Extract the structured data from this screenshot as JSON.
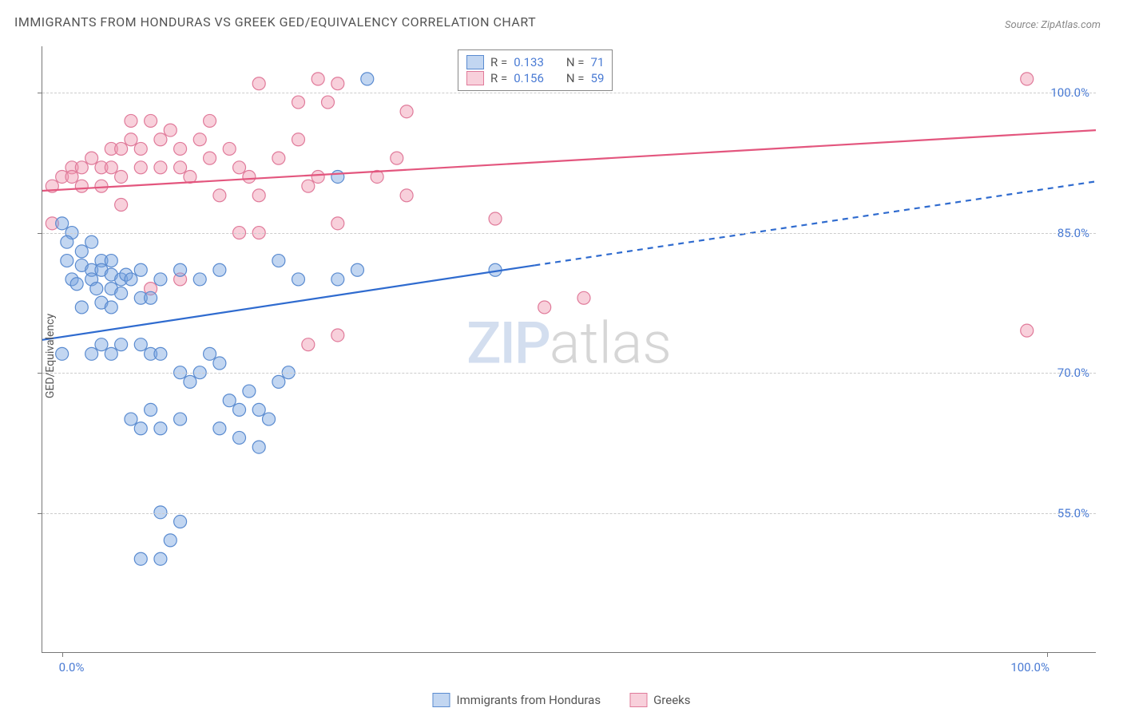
{
  "title": "IMMIGRANTS FROM HONDURAS VS GREEK GED/EQUIVALENCY CORRELATION CHART",
  "source_label": "Source: ZipAtlas.com",
  "y_axis_title": "GED/Equivalency",
  "watermark": {
    "part1": "ZIP",
    "part2": "atlas"
  },
  "chart": {
    "type": "scatter-with-regression",
    "plot_bg": "#ffffff",
    "grid_color": "#cccccc",
    "grid_dash": "4,4",
    "axis_color": "#777777",
    "tick_label_color": "#4a7bd4",
    "tick_label_fontsize": 15,
    "x_range": [
      -2,
      105
    ],
    "y_range": [
      40,
      105
    ],
    "y_ticks": [
      55.0,
      70.0,
      85.0,
      100.0
    ],
    "y_tick_labels": [
      "55.0%",
      "70.0%",
      "85.0%",
      "100.0%"
    ],
    "x_ticks": [
      0.0,
      100.0
    ],
    "x_tick_labels": [
      "0.0%",
      "100.0%"
    ],
    "point_radius": 8,
    "point_stroke_width": 1.2,
    "series": [
      {
        "id": "honduras",
        "label": "Immigrants from Honduras",
        "fill": "rgba(120,165,225,0.45)",
        "stroke": "#5a8bd0",
        "line_color": "#2f6bcf",
        "line_width": 2.2,
        "r_value": "0.133",
        "n_value": "71",
        "reg_line": {
          "x1": -2,
          "y1": 73.5,
          "x2": 48,
          "y2": 81.5,
          "x2_ext": 105,
          "y2_ext": 90.5
        },
        "points": [
          [
            0,
            86
          ],
          [
            1,
            85
          ],
          [
            0.5,
            84
          ],
          [
            0.5,
            82
          ],
          [
            2,
            83
          ],
          [
            3,
            84
          ],
          [
            2,
            81.5
          ],
          [
            3,
            81
          ],
          [
            1,
            80
          ],
          [
            1.5,
            79.5
          ],
          [
            4,
            82
          ],
          [
            4,
            81
          ],
          [
            5,
            82
          ],
          [
            5,
            80.5
          ],
          [
            3,
            80
          ],
          [
            3.5,
            79
          ],
          [
            5,
            79
          ],
          [
            6,
            80
          ],
          [
            6.5,
            80.5
          ],
          [
            7,
            80
          ],
          [
            8,
            81
          ],
          [
            4,
            77.5
          ],
          [
            2,
            77
          ],
          [
            5,
            77
          ],
          [
            6,
            78.5
          ],
          [
            8,
            78
          ],
          [
            9,
            78
          ],
          [
            10,
            80
          ],
          [
            12,
            81
          ],
          [
            14,
            80
          ],
          [
            16,
            81
          ],
          [
            22,
            82
          ],
          [
            24,
            80
          ],
          [
            28,
            80
          ],
          [
            30,
            81
          ],
          [
            0,
            72
          ],
          [
            3,
            72
          ],
          [
            4,
            73
          ],
          [
            5,
            72
          ],
          [
            6,
            73
          ],
          [
            8,
            73
          ],
          [
            9,
            72
          ],
          [
            10,
            72
          ],
          [
            12,
            70
          ],
          [
            13,
            69
          ],
          [
            14,
            70
          ],
          [
            15,
            72
          ],
          [
            16,
            71
          ],
          [
            17,
            67
          ],
          [
            18,
            66
          ],
          [
            19,
            68
          ],
          [
            20,
            66
          ],
          [
            21,
            65
          ],
          [
            22,
            69
          ],
          [
            23,
            70
          ],
          [
            16,
            64
          ],
          [
            18,
            63
          ],
          [
            20,
            62
          ],
          [
            7,
            65
          ],
          [
            8,
            64
          ],
          [
            9,
            66
          ],
          [
            10,
            64
          ],
          [
            12,
            65
          ],
          [
            10,
            55
          ],
          [
            11,
            52
          ],
          [
            12,
            54
          ],
          [
            8,
            50
          ],
          [
            10,
            50
          ],
          [
            28,
            91
          ],
          [
            31,
            101.5
          ],
          [
            44,
            81
          ]
        ]
      },
      {
        "id": "greeks",
        "label": "Greeks",
        "fill": "rgba(240,150,175,0.45)",
        "stroke": "#e07a9a",
        "line_color": "#e3567e",
        "line_width": 2.2,
        "r_value": "0.156",
        "n_value": "59",
        "reg_line": {
          "x1": -2,
          "y1": 89.5,
          "x2": 105,
          "y2": 96.0
        },
        "points": [
          [
            -1,
            90
          ],
          [
            -1,
            86
          ],
          [
            0,
            91
          ],
          [
            1,
            92
          ],
          [
            1,
            91
          ],
          [
            2,
            92
          ],
          [
            2,
            90
          ],
          [
            3,
            93
          ],
          [
            4,
            92
          ],
          [
            4,
            90
          ],
          [
            5,
            94
          ],
          [
            5,
            92
          ],
          [
            6,
            91
          ],
          [
            6,
            94
          ],
          [
            7,
            95
          ],
          [
            7,
            97
          ],
          [
            8,
            94
          ],
          [
            8,
            92
          ],
          [
            9,
            97
          ],
          [
            10,
            95
          ],
          [
            10,
            92
          ],
          [
            11,
            96
          ],
          [
            12,
            92
          ],
          [
            12,
            94
          ],
          [
            13,
            91
          ],
          [
            14,
            95
          ],
          [
            15,
            97
          ],
          [
            15,
            93
          ],
          [
            16,
            89
          ],
          [
            17,
            94
          ],
          [
            18,
            92
          ],
          [
            19,
            91
          ],
          [
            20,
            101
          ],
          [
            20,
            89
          ],
          [
            22,
            93
          ],
          [
            24,
            95
          ],
          [
            24,
            99
          ],
          [
            25,
            90
          ],
          [
            26,
            101.5
          ],
          [
            26,
            91
          ],
          [
            27,
            99
          ],
          [
            28,
            86
          ],
          [
            32,
            91
          ],
          [
            34,
            93
          ],
          [
            35,
            89
          ],
          [
            35,
            98
          ],
          [
            20,
            85
          ],
          [
            9,
            79
          ],
          [
            12,
            80
          ],
          [
            18,
            85
          ],
          [
            25,
            73
          ],
          [
            28,
            74
          ],
          [
            28,
            101
          ],
          [
            44,
            86.5
          ],
          [
            49,
            77
          ],
          [
            53,
            78
          ],
          [
            98,
            101.5
          ],
          [
            98,
            74.5
          ],
          [
            6,
            88
          ]
        ]
      }
    ]
  },
  "legend_top": {
    "r_label": "R =",
    "n_label": "N ="
  },
  "legend_bottom": {
    "items": [
      {
        "ref": "honduras"
      },
      {
        "ref": "greeks"
      }
    ]
  }
}
